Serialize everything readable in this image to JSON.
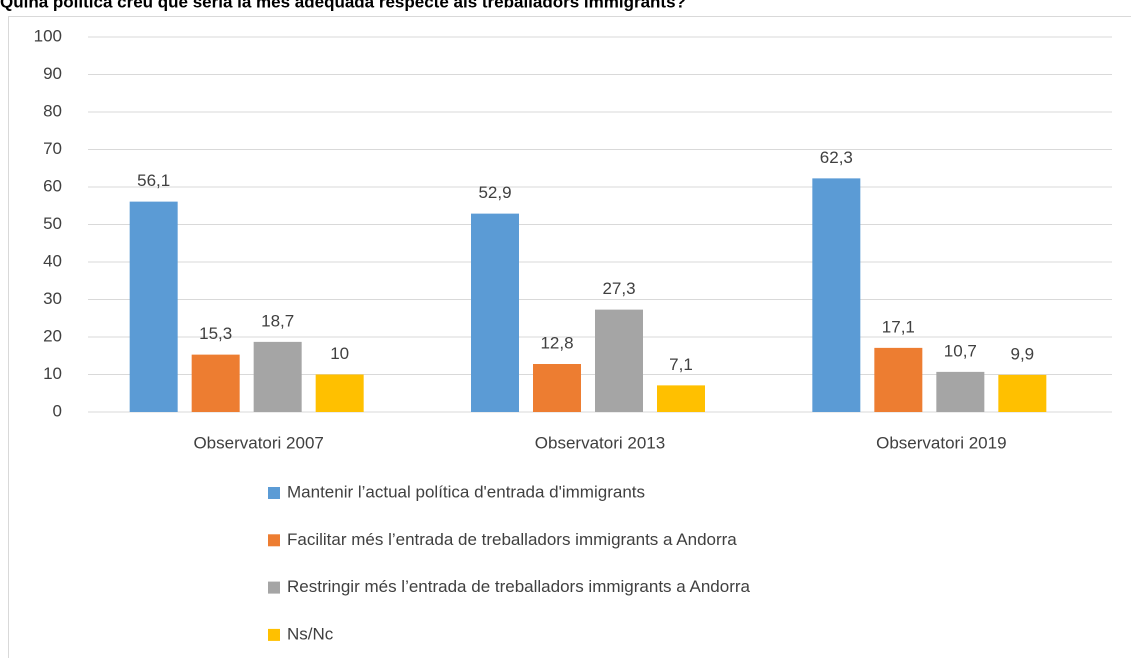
{
  "chart_data": {
    "type": "bar",
    "title": "Quina política creu que seria la més adequada respecte als treballadors immigrants?",
    "categories": [
      "Observatori 2007",
      "Observatori 2013",
      "Observatori 2019"
    ],
    "series": [
      {
        "name": "Mantenir l’actual política d'entrada d'immigrants",
        "color": "#5b9bd5",
        "values": [
          56.1,
          52.9,
          62.3
        ],
        "value_labels": [
          "56,1",
          "52,9",
          "62,3"
        ]
      },
      {
        "name": "Facilitar més l’entrada de treballadors immigrants a Andorra",
        "color": "#ed7d31",
        "values": [
          15.3,
          12.8,
          17.1
        ],
        "value_labels": [
          "15,3",
          "12,8",
          "17,1"
        ]
      },
      {
        "name": "Restringir més l’entrada de treballadors immigrants a Andorra",
        "color": "#a5a5a5",
        "values": [
          18.7,
          27.3,
          10.7
        ],
        "value_labels": [
          "18,7",
          "27,3",
          "10,7"
        ]
      },
      {
        "name": "Ns/Nc",
        "color": "#ffc000",
        "values": [
          10,
          7.1,
          9.9
        ],
        "value_labels": [
          "10",
          "7,1",
          "9,9"
        ]
      }
    ],
    "ylim": [
      0,
      100
    ],
    "yticks": [
      0,
      10,
      20,
      30,
      40,
      50,
      60,
      70,
      80,
      90,
      100
    ],
    "grid": true
  }
}
